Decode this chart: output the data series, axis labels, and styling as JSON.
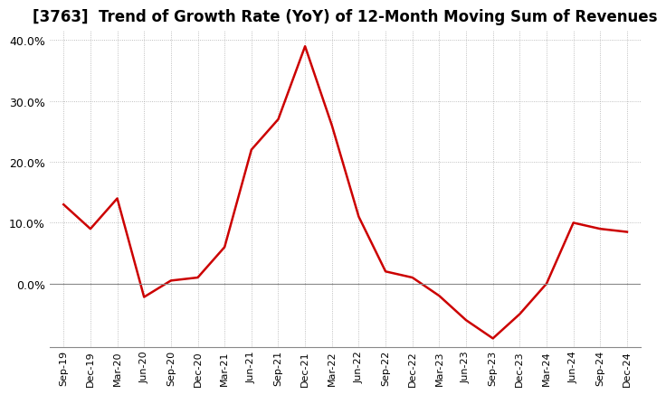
{
  "title": "[3763]  Trend of Growth Rate (YoY) of 12-Month Moving Sum of Revenues",
  "x_labels": [
    "Sep-19",
    "Dec-19",
    "Mar-20",
    "Jun-20",
    "Sep-20",
    "Dec-20",
    "Mar-21",
    "Jun-21",
    "Sep-21",
    "Dec-21",
    "Mar-22",
    "Jun-22",
    "Sep-22",
    "Dec-22",
    "Mar-23",
    "Jun-23",
    "Sep-23",
    "Dec-23",
    "Mar-24",
    "Jun-24",
    "Sep-24",
    "Dec-24"
  ],
  "y_values": [
    0.13,
    0.09,
    0.14,
    -0.022,
    0.005,
    0.01,
    0.06,
    0.22,
    0.27,
    0.39,
    0.26,
    0.11,
    0.02,
    0.01,
    -0.02,
    -0.06,
    -0.09,
    -0.05,
    0.0,
    0.1,
    0.09,
    0.085
  ],
  "line_color": "#cc0000",
  "line_width": 1.8,
  "background_color": "#ffffff",
  "plot_bg_color": "#ffffff",
  "grid_color": "#999999",
  "title_fontsize": 12,
  "ylim": [
    -0.105,
    0.415
  ],
  "yticks": [
    0.0,
    0.1,
    0.2,
    0.3,
    0.4
  ],
  "ytick_labels": [
    "0.0%",
    "10.0%",
    "20.0%",
    "30.0%",
    "40.0%"
  ],
  "tick_fontsize": 9,
  "xlabel_fontsize": 8
}
